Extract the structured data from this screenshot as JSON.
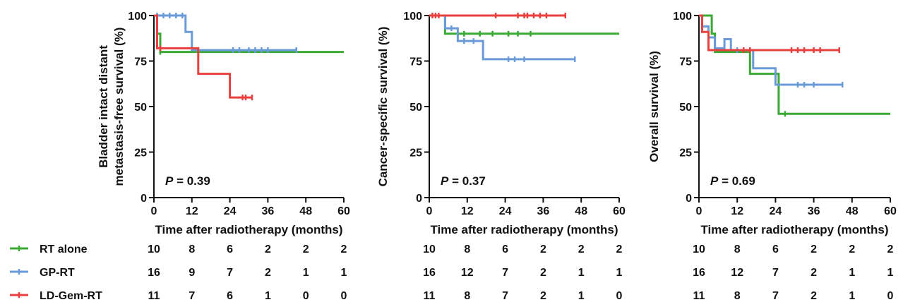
{
  "chart_data": [
    {
      "type": "line",
      "subtype": "kaplan-meier",
      "ylabel_line1": "Bladder intact distant",
      "ylabel_line2": "metastasis-free survival (%)",
      "xlabel": "Time after radiotherapy (months)",
      "xlim": [
        0,
        60
      ],
      "ylim": [
        0,
        100
      ],
      "xticks": [
        0,
        12,
        24,
        36,
        48,
        60
      ],
      "yticks": [
        0,
        25,
        50,
        75,
        100
      ],
      "p_prefix": "P",
      "p_text": " = 0.39",
      "grid": false,
      "series": [
        {
          "name": "RT alone",
          "color": "#3aaa35",
          "steps": [
            [
              0,
              100
            ],
            [
              1,
              100
            ],
            [
              1,
              90
            ],
            [
              2,
              90
            ],
            [
              2,
              80
            ],
            [
              60,
              80
            ]
          ],
          "censor": [
            [
              2,
              80
            ]
          ]
        },
        {
          "name": "GP-RT",
          "color": "#6a9bd8",
          "steps": [
            [
              0,
              100
            ],
            [
              10,
              100
            ],
            [
              10,
              91
            ],
            [
              12,
              91
            ],
            [
              12,
              81
            ],
            [
              45,
              81
            ]
          ],
          "censor": [
            [
              1,
              100
            ],
            [
              3,
              100
            ],
            [
              5,
              100
            ],
            [
              7,
              100
            ],
            [
              9,
              100
            ],
            [
              14,
              81
            ],
            [
              25,
              81
            ],
            [
              27,
              81
            ],
            [
              30,
              81
            ],
            [
              32,
              81
            ],
            [
              34,
              81
            ],
            [
              36,
              81
            ],
            [
              45,
              81
            ]
          ]
        },
        {
          "name": "LD-Gem-RT",
          "color": "#e8403f",
          "steps": [
            [
              0,
              100
            ],
            [
              1,
              100
            ],
            [
              1,
              82
            ],
            [
              14,
              82
            ],
            [
              14,
              68
            ],
            [
              24,
              68
            ],
            [
              24,
              55
            ],
            [
              31,
              55
            ]
          ],
          "censor": [
            [
              2,
              82
            ],
            [
              28,
              55
            ],
            [
              29,
              55
            ],
            [
              31,
              55
            ]
          ]
        }
      ],
      "risk": {
        "RT alone": [
          10,
          8,
          6,
          2,
          2,
          2
        ],
        "GP-RT": [
          16,
          9,
          7,
          2,
          1,
          1
        ],
        "LD-Gem-RT": [
          11,
          7,
          6,
          1,
          0,
          0
        ]
      }
    },
    {
      "type": "line",
      "subtype": "kaplan-meier",
      "ylabel_line1": "Cancer-specific survival (%)",
      "ylabel_line2": "",
      "xlabel": "Time after radiotherapy (months)",
      "xlim": [
        0,
        60
      ],
      "ylim": [
        0,
        100
      ],
      "xticks": [
        0,
        12,
        24,
        36,
        48,
        60
      ],
      "yticks": [
        0,
        25,
        50,
        75,
        100
      ],
      "p_prefix": "P",
      "p_text": " = 0.37",
      "grid": false,
      "series": [
        {
          "name": "RT alone",
          "color": "#3aaa35",
          "steps": [
            [
              0,
              100
            ],
            [
              5,
              100
            ],
            [
              5,
              90
            ],
            [
              60,
              90
            ]
          ],
          "censor": [
            [
              11,
              90
            ],
            [
              16,
              90
            ],
            [
              20,
              90
            ],
            [
              25,
              90
            ],
            [
              28,
              90
            ],
            [
              32,
              90
            ]
          ]
        },
        {
          "name": "GP-RT",
          "color": "#6a9bd8",
          "steps": [
            [
              0,
              100
            ],
            [
              5,
              100
            ],
            [
              5,
              93
            ],
            [
              9,
              93
            ],
            [
              9,
              86
            ],
            [
              17,
              86
            ],
            [
              17,
              76
            ],
            [
              46,
              76
            ]
          ],
          "censor": [
            [
              7,
              93
            ],
            [
              11,
              86
            ],
            [
              14,
              86
            ],
            [
              25,
              76
            ],
            [
              27,
              76
            ],
            [
              30,
              76
            ],
            [
              46,
              76
            ]
          ]
        },
        {
          "name": "LD-Gem-RT",
          "color": "#e8403f",
          "steps": [
            [
              0,
              100
            ],
            [
              43,
              100
            ]
          ],
          "censor": [
            [
              1,
              100
            ],
            [
              2,
              100
            ],
            [
              3,
              100
            ],
            [
              21,
              100
            ],
            [
              28,
              100
            ],
            [
              30,
              100
            ],
            [
              31,
              100
            ],
            [
              33,
              100
            ],
            [
              35,
              100
            ],
            [
              37,
              100
            ],
            [
              43,
              100
            ]
          ]
        }
      ],
      "risk": {
        "RT alone": [
          10,
          8,
          6,
          2,
          2,
          2
        ],
        "GP-RT": [
          16,
          12,
          7,
          2,
          1,
          1
        ],
        "LD-Gem-RT": [
          11,
          8,
          7,
          2,
          1,
          0
        ]
      }
    },
    {
      "type": "line",
      "subtype": "kaplan-meier",
      "ylabel_line1": "Overall survival (%)",
      "ylabel_line2": "",
      "xlabel": "Time after radiotherapy (months)",
      "xlim": [
        0,
        60
      ],
      "ylim": [
        0,
        100
      ],
      "xticks": [
        0,
        12,
        24,
        36,
        48,
        60
      ],
      "yticks": [
        0,
        25,
        50,
        75,
        100
      ],
      "p_prefix": "P",
      "p_text": " = 0.69",
      "grid": false,
      "series": [
        {
          "name": "RT alone",
          "color": "#3aaa35",
          "steps": [
            [
              0,
              100
            ],
            [
              4,
              100
            ],
            [
              4,
              90
            ],
            [
              5,
              90
            ],
            [
              5,
              80
            ],
            [
              16,
              80
            ],
            [
              16,
              68
            ],
            [
              25,
              68
            ],
            [
              25,
              46
            ],
            [
              60,
              46
            ]
          ],
          "censor": [
            [
              27,
              46
            ]
          ]
        },
        {
          "name": "GP-RT",
          "color": "#6a9bd8",
          "steps": [
            [
              0,
              100
            ],
            [
              1,
              100
            ],
            [
              1,
              94
            ],
            [
              3,
              94
            ],
            [
              3,
              88
            ],
            [
              5,
              88
            ],
            [
              5,
              82
            ],
            [
              8,
              82
            ],
            [
              8,
              87
            ],
            [
              10,
              87
            ],
            [
              10,
              81
            ],
            [
              17,
              81
            ],
            [
              17,
              71
            ],
            [
              24,
              71
            ],
            [
              24,
              62
            ],
            [
              45,
              62
            ]
          ],
          "censor": [
            [
              12,
              81
            ],
            [
              14,
              81
            ],
            [
              31,
              62
            ],
            [
              33,
              62
            ],
            [
              36,
              62
            ],
            [
              45,
              62
            ]
          ]
        },
        {
          "name": "LD-Gem-RT",
          "color": "#e8403f",
          "steps": [
            [
              0,
              100
            ],
            [
              1,
              100
            ],
            [
              1,
              91
            ],
            [
              3,
              91
            ],
            [
              3,
              81
            ],
            [
              44,
              81
            ]
          ],
          "censor": [
            [
              14,
              81
            ],
            [
              16,
              81
            ],
            [
              29,
              81
            ],
            [
              31,
              81
            ],
            [
              33,
              81
            ],
            [
              36,
              81
            ],
            [
              38,
              81
            ],
            [
              44,
              81
            ]
          ]
        }
      ],
      "risk": {
        "RT alone": [
          10,
          8,
          6,
          2,
          2,
          2
        ],
        "GP-RT": [
          16,
          12,
          7,
          2,
          1,
          1
        ],
        "LD-Gem-RT": [
          11,
          8,
          7,
          2,
          1,
          0
        ]
      }
    }
  ],
  "legend": [
    {
      "name": "RT alone",
      "color": "#3aaa35"
    },
    {
      "name": "GP-RT",
      "color": "#6a9bd8"
    },
    {
      "name": "LD-Gem-RT",
      "color": "#e8403f"
    }
  ]
}
